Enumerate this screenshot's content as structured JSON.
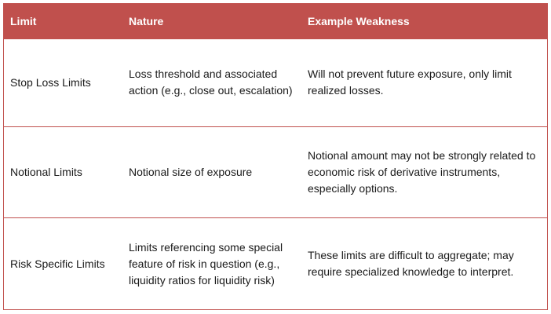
{
  "header": {
    "col1": "Limit",
    "col2": "Nature",
    "col3": "Example Weakness"
  },
  "rows": [
    {
      "limit": "Stop Loss Limits",
      "nature": "Loss threshold and associated action (e.g., close out, escalation)",
      "weakness": "Will not prevent future exposure, only limit realized losses."
    },
    {
      "limit": "Notional Limits",
      "nature": "Notional size of exposure",
      "weakness": "Notional amount may not be strongly related to economic risk of derivative instruments, especially options."
    },
    {
      "limit": "Risk Specific Limits",
      "nature": "Limits referencing some special feature of risk in question (e.g., liquidity ratios for liquidity risk)",
      "weakness": "These limits are difficult to aggregate; may require specialized knowledge to interpret."
    }
  ],
  "colors": {
    "header_bg": "#c0504d",
    "header_text": "#ffffff",
    "rule": "#c0504d"
  }
}
